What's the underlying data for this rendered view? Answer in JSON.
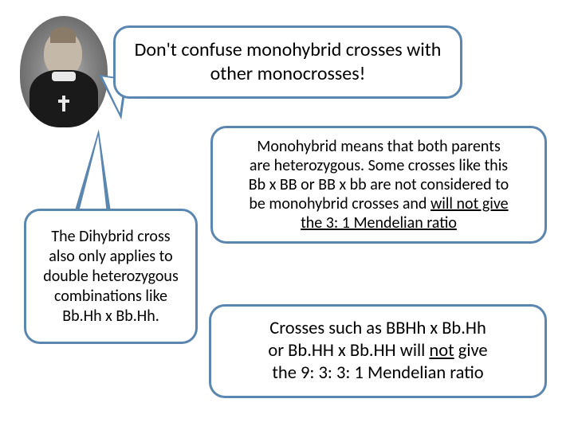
{
  "colors": {
    "bubble_border": "#5b86b0",
    "text": "#000000",
    "background": "#ffffff"
  },
  "typography": {
    "title_fontsize": 24,
    "body_fontsize": 20,
    "bottom_fontsize": 22.5,
    "font_family": "Calibri"
  },
  "title_bubble": {
    "line1": "Don't confuse monohybrid crosses with",
    "line2": "other monocrosses!"
  },
  "mono_bubble": {
    "line1": "Monohybrid means that both parents",
    "line2": "are heterozygous.  Some crosses like this",
    "line3": "Bb x BB or BB x bb are not considered to",
    "line4_pre": "be monohybrid crosses and ",
    "line4_ul": "will not give",
    "line5_ul": "the 3: 1 Mendelian ratio"
  },
  "dihy_bubble": {
    "line1": "The Dihybrid cross",
    "line2": "also only applies to",
    "line3": "double heterozygous",
    "line4": "combinations like",
    "line5": "Bb.Hh x Bb.Hh."
  },
  "bottom_bubble": {
    "line1": "Crosses such as BBHh x Bb.Hh",
    "line2_pre": "or Bb.HH x Bb.HH will ",
    "line2_ul": "not",
    "line2_post": " give",
    "line3": "the 9: 3: 3: 1 Mendelian ratio"
  }
}
